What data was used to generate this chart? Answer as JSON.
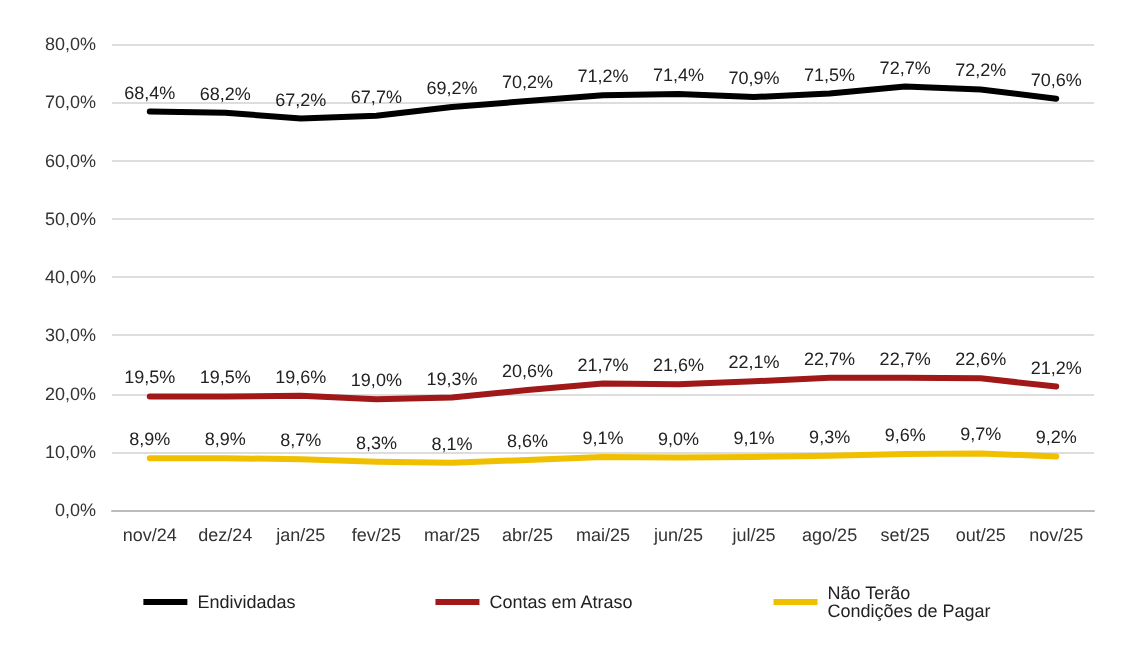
{
  "chart_data": {
    "type": "line",
    "categories": [
      "nov/24",
      "dez/24",
      "jan/25",
      "fev/25",
      "mar/25",
      "abr/25",
      "mai/25",
      "jun/25",
      "jul/25",
      "ago/25",
      "set/25",
      "out/25",
      "nov/25"
    ],
    "series": [
      {
        "name": "Endividadas",
        "color": "#000000",
        "values": [
          68.4,
          68.2,
          67.2,
          67.7,
          69.2,
          70.2,
          71.2,
          71.4,
          70.9,
          71.5,
          72.7,
          72.2,
          70.6
        ],
        "value_labels": [
          "68,4%",
          "68,2%",
          "67,2%",
          "67,7%",
          "69,2%",
          "70,2%",
          "71,2%",
          "71,4%",
          "70,9%",
          "71,5%",
          "72,7%",
          "72,2%",
          "70,6%"
        ]
      },
      {
        "name": "Contas em Atraso",
        "color": "#a01818",
        "values": [
          19.5,
          19.5,
          19.6,
          19.0,
          19.3,
          20.6,
          21.7,
          21.6,
          22.1,
          22.7,
          22.7,
          22.6,
          21.2
        ],
        "value_labels": [
          "19,5%",
          "19,5%",
          "19,6%",
          "19,0%",
          "19,3%",
          "20,6%",
          "21,7%",
          "21,6%",
          "22,1%",
          "22,7%",
          "22,7%",
          "22,6%",
          "21,2%"
        ]
      },
      {
        "name": "Não Terão Condições de Pagar",
        "color": "#f0c000",
        "values": [
          8.9,
          8.9,
          8.7,
          8.3,
          8.1,
          8.6,
          9.1,
          9.0,
          9.1,
          9.3,
          9.6,
          9.7,
          9.2
        ],
        "value_labels": [
          "8,9%",
          "8,9%",
          "8,7%",
          "8,3%",
          "8,1%",
          "8,6%",
          "9,1%",
          "9,0%",
          "9,1%",
          "9,3%",
          "9,6%",
          "9,7%",
          "9,2%"
        ]
      }
    ],
    "ylim": [
      0,
      80
    ],
    "yticks": [
      {
        "value": 0,
        "label": "0,0%"
      },
      {
        "value": 10,
        "label": "10,0%"
      },
      {
        "value": 20,
        "label": "20,0%"
      },
      {
        "value": 30,
        "label": "30,0%"
      },
      {
        "value": 40,
        "label": "40,0%"
      },
      {
        "value": 50,
        "label": "50,0%"
      },
      {
        "value": 60,
        "label": "60,0%"
      },
      {
        "value": 70,
        "label": "70,0%"
      },
      {
        "value": 80,
        "label": "80,0%"
      }
    ],
    "grid": "y",
    "legend": "bottom",
    "marker": "none",
    "line_style": "solid"
  }
}
